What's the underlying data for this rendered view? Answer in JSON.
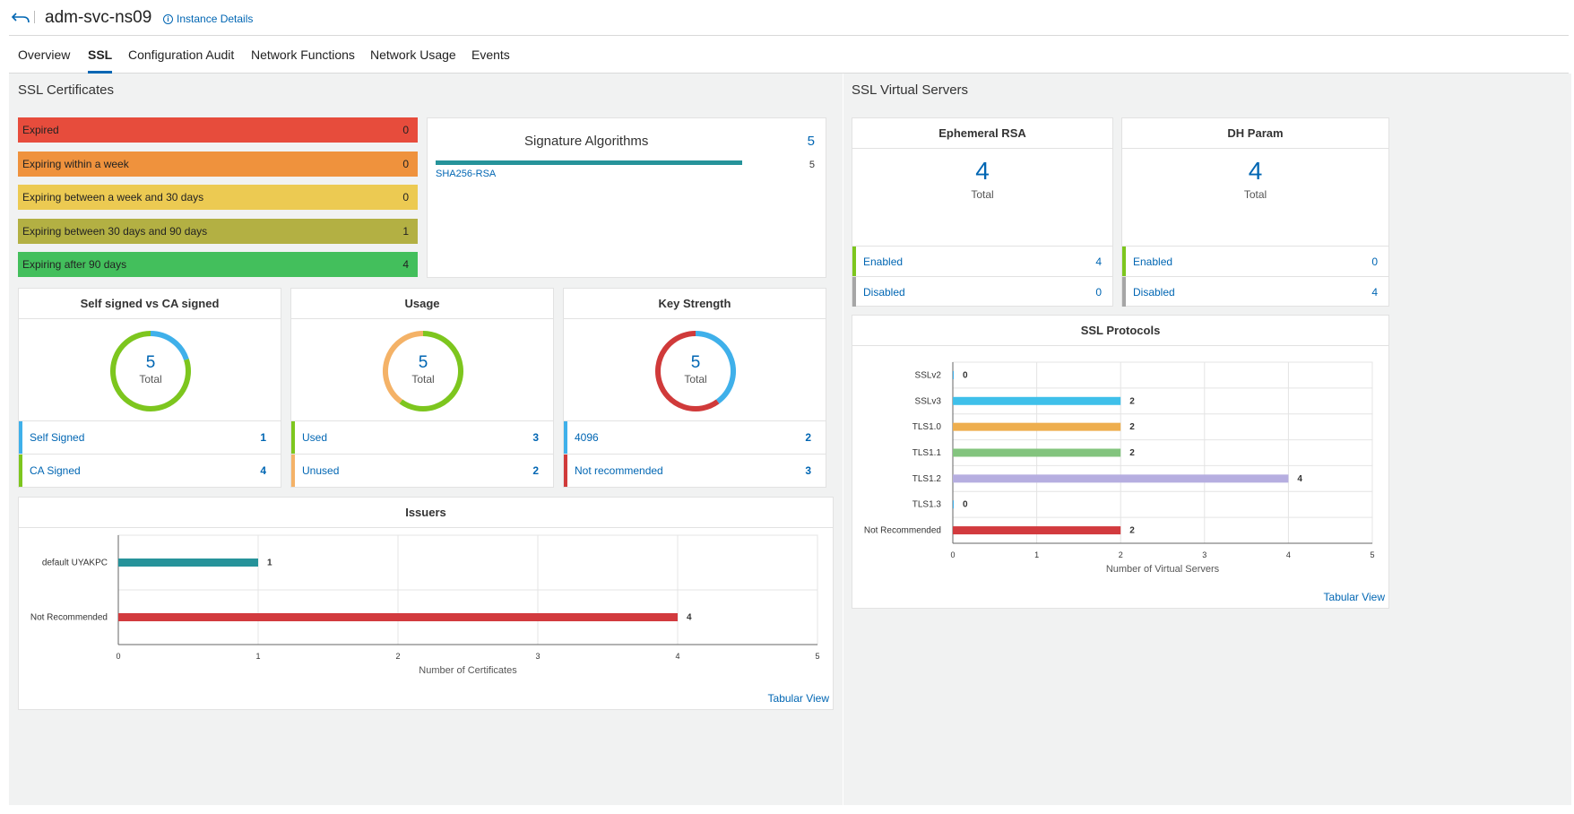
{
  "header": {
    "title": "adm-svc-ns09",
    "instance_details": "Instance Details"
  },
  "tabs": [
    "Overview",
    "SSL",
    "Configuration Audit",
    "Network Functions",
    "Network Usage",
    "Events"
  ],
  "ssl_certificates": {
    "title": "SSL Certificates",
    "expiry": [
      {
        "label": "Expired",
        "value": "0",
        "color": "#e74c3c"
      },
      {
        "label": "Expiring within a week",
        "value": "0",
        "color": "#ef923d"
      },
      {
        "label": "Expiring between a week and 30 days",
        "value": "0",
        "color": "#ecca52"
      },
      {
        "label": "Expiring between 30 days and 90 days",
        "value": "1",
        "color": "#b3b043"
      },
      {
        "label": "Expiring after 90 days",
        "value": "4",
        "color": "#43bf5c"
      }
    ],
    "signature_algorithms": {
      "title": "Signature Algorithms",
      "total": "5",
      "items": [
        {
          "label": "SHA256-RSA",
          "value": "5"
        }
      ],
      "bar_fraction": 1.0
    },
    "self_vs_ca": {
      "title": "Self signed vs CA signed",
      "total": "5",
      "total_label": "Total",
      "rows": [
        {
          "label": "Self Signed",
          "value": "1",
          "color": "#3fb0ea"
        },
        {
          "label": "CA Signed",
          "value": "4",
          "color": "#7dc61e"
        }
      ]
    },
    "usage": {
      "title": "Usage",
      "total": "5",
      "total_label": "Total",
      "rows": [
        {
          "label": "Used",
          "value": "3",
          "color": "#7dc61e"
        },
        {
          "label": "Unused",
          "value": "2",
          "color": "#f4b267"
        }
      ]
    },
    "key_strength": {
      "title": "Key Strength",
      "total": "5",
      "total_label": "Total",
      "rows": [
        {
          "label": "4096",
          "value": "2",
          "color": "#3fb0ea"
        },
        {
          "label": "Not recommended",
          "value": "3",
          "color": "#d03a3a"
        }
      ]
    },
    "issuers": {
      "title": "Issuers",
      "tabular_view": "Tabular View"
    }
  },
  "ssl_virtual_servers": {
    "title": "SSL Virtual Servers",
    "ephemeral_rsa": {
      "title": "Ephemeral RSA",
      "total": "4",
      "total_label": "Total",
      "rows": [
        {
          "label": "Enabled",
          "value": "4",
          "color": "#7dc61e"
        },
        {
          "label": "Disabled",
          "value": "0",
          "color": "#a6a6a6"
        }
      ]
    },
    "dh_param": {
      "title": "DH Param",
      "total": "4",
      "total_label": "Total",
      "rows": [
        {
          "label": "Enabled",
          "value": "0",
          "color": "#7dc61e"
        },
        {
          "label": "Disabled",
          "value": "4",
          "color": "#a6a6a6"
        }
      ]
    },
    "ssl_protocols": {
      "title": "SSL Protocols",
      "tabular_view": "Tabular View"
    }
  },
  "chart_data": [
    {
      "type": "bar",
      "orientation": "horizontal",
      "title": "Issuers",
      "categories": [
        "default UYAKPC",
        "Not Recommended"
      ],
      "values": [
        1,
        4
      ],
      "colors": [
        "#26939a",
        "#d23a3e"
      ],
      "xlabel": "Number of Certificates",
      "xlim": [
        0,
        5
      ],
      "xticks": [
        "0",
        "1",
        "2",
        "3",
        "4",
        "5"
      ],
      "grid": true
    },
    {
      "type": "bar",
      "orientation": "horizontal",
      "title": "SSL Protocols",
      "categories": [
        "SSLv2",
        "SSLv3",
        "TLS1.0",
        "TLS1.1",
        "TLS1.2",
        "TLS1.3",
        "Not Recommended"
      ],
      "values": [
        0,
        2,
        2,
        2,
        4,
        0,
        2
      ],
      "colors": [
        "#3fb0ea",
        "#3fc0ea",
        "#eeae4e",
        "#83c47e",
        "#b6aee0",
        "#3fb0ea",
        "#d23a3e"
      ],
      "xlabel": "Number of Virtual Servers",
      "xlim": [
        0,
        5
      ],
      "xticks": [
        "0",
        "1",
        "2",
        "3",
        "4",
        "5"
      ],
      "grid": true
    }
  ]
}
